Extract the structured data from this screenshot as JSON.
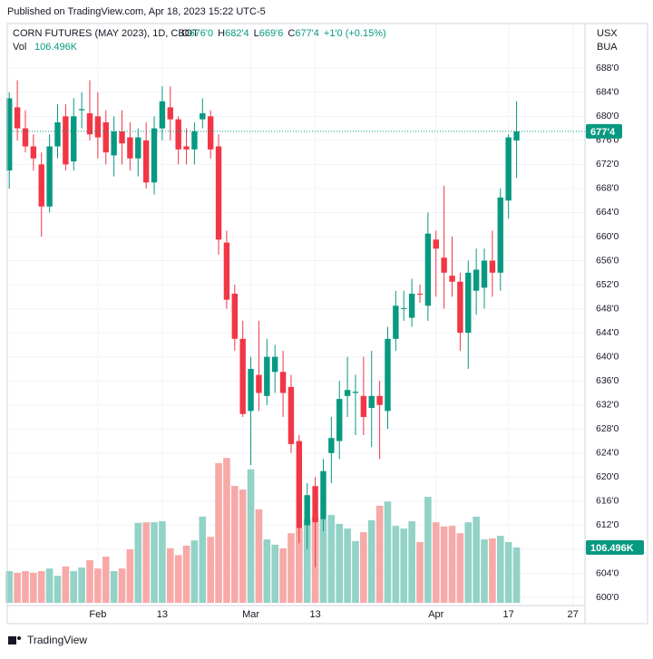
{
  "chart_data": {
    "type": "candlestick",
    "published": "Published on TradingView.com, Apr 18, 2023 15:22 UTC-5",
    "title": "CORN FUTURES (MAY 2023), 1D, CBOT",
    "legend": [
      {
        "label": "O",
        "value": "676'0"
      },
      {
        "label": "H",
        "value": "682'4"
      },
      {
        "label": "L",
        "value": "669'6"
      },
      {
        "label": "C",
        "value": "677'4"
      }
    ],
    "change": "+1'0 (+0.15%)",
    "volume_name": "Vol",
    "volume_label": "106.496K",
    "currency": "USX",
    "unit": "BUA",
    "last_price_label": "677'4",
    "brand": "TradingView",
    "up_color": "#089981",
    "down_color": "#f23645",
    "up_volume_color": "#92d2c7",
    "down_volume_color": "#f7a9a7",
    "grid": true,
    "open": [
      671,
      681.5,
      678,
      675,
      672,
      665,
      675,
      680,
      672.5,
      681,
      680.5,
      680,
      679,
      673.5,
      677.5,
      676.5,
      673,
      676,
      669,
      678,
      681.5,
      679.5,
      675,
      674.5,
      679.5,
      680,
      675,
      659,
      650.5,
      643,
      631,
      637,
      633.5,
      637.5,
      637.5,
      635,
      626,
      612,
      618.5,
      613,
      624,
      626,
      633.5,
      634,
      633.5,
      631.5,
      633.5,
      631,
      643,
      648,
      646.5,
      650.5,
      648.5,
      659.5,
      656.5,
      653.5,
      652.5,
      644,
      651,
      651.5,
      656,
      654,
      666,
      676
    ],
    "high": [
      684,
      686,
      681,
      677,
      674,
      677,
      682,
      682,
      683,
      684,
      686,
      684,
      681,
      680,
      681,
      679,
      678,
      679,
      680,
      685,
      685,
      680,
      678,
      679,
      683,
      681,
      677,
      661,
      652,
      646,
      640,
      646,
      643,
      642,
      641,
      637,
      627,
      619,
      620,
      623,
      630,
      636,
      640,
      637,
      640,
      641,
      636,
      645,
      651,
      651,
      653,
      652,
      664,
      661,
      668.5,
      660,
      654,
      656,
      658,
      658,
      661,
      668,
      677,
      682.5
    ],
    "low": [
      668,
      676,
      674,
      671,
      660,
      664,
      673,
      671,
      671,
      678,
      676,
      673,
      672,
      670,
      672,
      671,
      670,
      668,
      667,
      676,
      676,
      672,
      672,
      672,
      678,
      673,
      657,
      648,
      641,
      630,
      622,
      631,
      632,
      634,
      630,
      624,
      609,
      608,
      605,
      611,
      619,
      623,
      630,
      627,
      627,
      625,
      623,
      628,
      641,
      646,
      645,
      649,
      646,
      650,
      648,
      650,
      641,
      638,
      647,
      648,
      650,
      651,
      663,
      669.75
    ],
    "close": [
      683,
      678,
      675,
      673,
      665,
      675,
      679,
      672,
      680,
      681.2,
      677,
      676.5,
      674,
      677.5,
      675.5,
      673,
      676.5,
      669,
      678,
      682.5,
      679.5,
      674.5,
      674.5,
      677.5,
      680.5,
      674.5,
      659.5,
      649.5,
      643,
      630.5,
      638,
      634,
      640,
      640,
      634,
      625.5,
      611.5,
      617,
      612.5,
      621,
      626.5,
      633,
      634.5,
      634.2,
      630,
      633.5,
      632,
      643,
      648.5,
      648.1,
      650.5,
      650.4,
      660.5,
      658,
      654,
      652.5,
      644,
      654,
      654.5,
      656,
      654,
      666.5,
      676.5,
      677.5
    ],
    "volume": [
      61000,
      58000,
      61000,
      58000,
      61000,
      66000,
      52000,
      70000,
      61000,
      68000,
      82000,
      66000,
      89000,
      61000,
      66000,
      103000,
      154000,
      155000,
      155000,
      157000,
      105000,
      92000,
      110000,
      120000,
      166000,
      127000,
      269000,
      279000,
      225000,
      218000,
      257000,
      180000,
      122000,
      112000,
      105000,
      134000,
      143000,
      161000,
      166000,
      161000,
      169000,
      152000,
      143000,
      119000,
      136000,
      159000,
      187000,
      195000,
      148000,
      143000,
      157000,
      117000,
      204000,
      155000,
      147000,
      148000,
      134000,
      155000,
      166000,
      122000,
      124000,
      129000,
      117000,
      106496
    ],
    "xlim": [
      -0.25,
      71.5
    ],
    "xticks": [
      {
        "value": 11,
        "label": "Feb"
      },
      {
        "value": 19,
        "label": "13"
      },
      {
        "value": 30,
        "label": "Mar"
      },
      {
        "value": 38,
        "label": "13"
      },
      {
        "value": 53,
        "label": "Apr"
      },
      {
        "value": 62,
        "label": "17"
      },
      {
        "value": 70,
        "label": "27"
      }
    ],
    "ylim": [
      599.1,
      690.3
    ],
    "y2lim": [
      0,
      1056000
    ],
    "yticks": [
      {
        "value": 600,
        "label": "600'0"
      },
      {
        "value": 604,
        "label": "604'0"
      },
      {
        "value": 608,
        "label": "608'0"
      },
      {
        "value": 612,
        "label": "612'0"
      },
      {
        "value": 616,
        "label": "616'0"
      },
      {
        "value": 620,
        "label": "620'0"
      },
      {
        "value": 624,
        "label": "624'0"
      },
      {
        "value": 628,
        "label": "628'0"
      },
      {
        "value": 632,
        "label": "632'0"
      },
      {
        "value": 636,
        "label": "636'0"
      },
      {
        "value": 640,
        "label": "640'0"
      },
      {
        "value": 644,
        "label": "644'0"
      },
      {
        "value": 648,
        "label": "648'0"
      },
      {
        "value": 652,
        "label": "652'0"
      },
      {
        "value": 656,
        "label": "656'0"
      },
      {
        "value": 660,
        "label": "660'0"
      },
      {
        "value": 664,
        "label": "664'0"
      },
      {
        "value": 668,
        "label": "668'0"
      },
      {
        "value": 672,
        "label": "672'0"
      },
      {
        "value": 676,
        "label": "676'0"
      },
      {
        "value": 680,
        "label": "680'0"
      },
      {
        "value": 684,
        "label": "684'0"
      },
      {
        "value": 688,
        "label": "688'0"
      }
    ]
  }
}
